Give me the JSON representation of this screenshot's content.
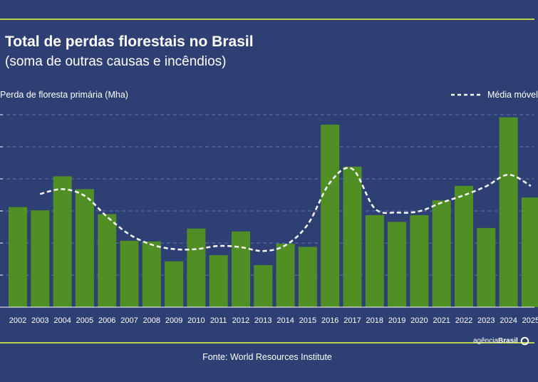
{
  "header": {
    "title": "Total de perdas florestais no Brasil",
    "subtitle": "(soma de outras causas e incêndios)"
  },
  "footer": {
    "source": "Fonte:  World Resources Institute",
    "logo_prefix": "agência",
    "logo_brand": "Brasil"
  },
  "colors": {
    "background": "#2e3f74",
    "bar": "#4f8f24",
    "line": "#ffffff",
    "accent": "#b7d34a",
    "grid": "#5f74b0"
  },
  "chart_data": {
    "type": "bar",
    "ylabel": "Perda de floresta primária (Mha)",
    "categories": [
      "2002",
      "2003",
      "2004",
      "2005",
      "2006",
      "2007",
      "2008",
      "2009",
      "2010",
      "2011",
      "2012",
      "2013",
      "2014",
      "2015",
      "2016",
      "2017",
      "2018",
      "2019",
      "2020",
      "2021",
      "2022",
      "2023",
      "2024",
      "2025"
    ],
    "ylim": [
      0,
      6
    ],
    "grid": true,
    "legend": "top-right",
    "series": [
      {
        "kind": "bar",
        "values": [
          3.12,
          3.02,
          4.08,
          3.68,
          2.9,
          2.07,
          2.05,
          1.43,
          2.45,
          1.62,
          2.36,
          1.31,
          1.98,
          1.88,
          5.69,
          4.38,
          2.87,
          2.66,
          2.87,
          3.33,
          3.78,
          2.47,
          5.92,
          3.42
        ]
      },
      {
        "kind": "line",
        "name": "Média móvel",
        "values": [
          null,
          3.53,
          3.68,
          3.47,
          2.82,
          2.27,
          1.95,
          1.81,
          1.81,
          1.91,
          1.87,
          1.75,
          1.93,
          2.58,
          3.89,
          4.31,
          3.08,
          2.95,
          2.99,
          3.26,
          3.49,
          3.77,
          4.13,
          3.78
        ]
      }
    ]
  }
}
